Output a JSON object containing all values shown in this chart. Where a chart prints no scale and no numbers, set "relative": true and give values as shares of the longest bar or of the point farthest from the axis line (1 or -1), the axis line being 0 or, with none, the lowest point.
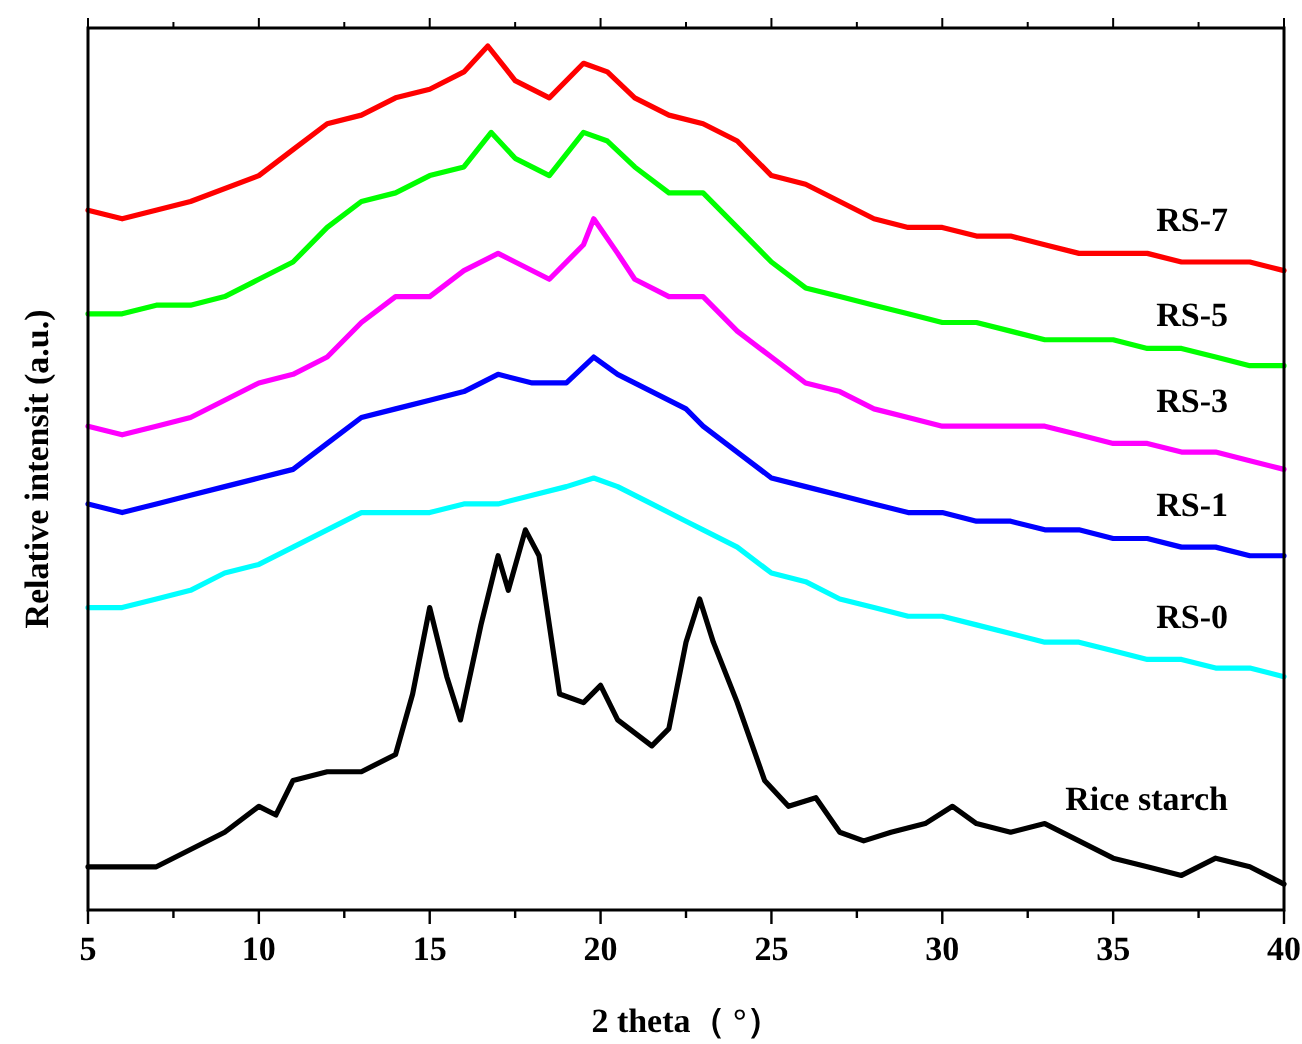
{
  "chart_data": {
    "type": "line",
    "relative": true,
    "xlabel": "2 theta（ °）",
    "ylabel": "Relative intensit (a.u.)",
    "xlim": [
      5,
      40
    ],
    "xticks": [
      5,
      {
        "value": 7.5,
        "label": null
      },
      10,
      {
        "value": 12.5,
        "label": null
      },
      15,
      {
        "value": 17.5,
        "label": null
      },
      20,
      {
        "value": 22.5,
        "label": null
      },
      25,
      {
        "value": 27.5,
        "label": null
      },
      30,
      {
        "value": 32.5,
        "label": null
      },
      35,
      {
        "value": 37.5,
        "label": null
      },
      40
    ],
    "grid": false,
    "legend": false,
    "marker": "none",
    "line_style": "solid",
    "series": [
      {
        "name": "RS-7",
        "color": "#ff0000",
        "x": [
          5,
          6,
          8,
          10,
          11,
          12,
          13,
          14,
          15,
          16,
          16.7,
          17.5,
          18.5,
          19.5,
          20.2,
          21,
          22,
          23,
          24,
          25,
          26,
          27,
          28,
          29,
          30,
          31,
          32,
          33,
          34,
          35,
          36,
          37,
          38,
          39,
          40
        ],
        "values": [
          0.81,
          0.8,
          0.82,
          0.85,
          0.88,
          0.91,
          0.92,
          0.94,
          0.95,
          0.97,
          1.0,
          0.96,
          0.94,
          0.98,
          0.97,
          0.94,
          0.92,
          0.91,
          0.89,
          0.85,
          0.84,
          0.82,
          0.8,
          0.79,
          0.79,
          0.78,
          0.78,
          0.77,
          0.76,
          0.76,
          0.76,
          0.75,
          0.75,
          0.75,
          0.74
        ]
      },
      {
        "name": "RS-5",
        "color": "#00ff00",
        "x": [
          5,
          6,
          7,
          8,
          9,
          10,
          11,
          12,
          13,
          14,
          15,
          16,
          16.8,
          17.5,
          18.5,
          19.5,
          20.2,
          21,
          22,
          23,
          24,
          25,
          26,
          27,
          28,
          29,
          30,
          31,
          32,
          33,
          34,
          35,
          36,
          37,
          38,
          39,
          40
        ],
        "values": [
          0.69,
          0.69,
          0.7,
          0.7,
          0.71,
          0.73,
          0.75,
          0.79,
          0.82,
          0.83,
          0.85,
          0.86,
          0.9,
          0.87,
          0.85,
          0.9,
          0.89,
          0.86,
          0.83,
          0.83,
          0.79,
          0.75,
          0.72,
          0.71,
          0.7,
          0.69,
          0.68,
          0.68,
          0.67,
          0.66,
          0.66,
          0.66,
          0.65,
          0.65,
          0.64,
          0.63,
          0.63
        ]
      },
      {
        "name": "RS-3",
        "color": "#ff00ff",
        "x": [
          5,
          6,
          7,
          8,
          9,
          10,
          11,
          12,
          13,
          14,
          15,
          16,
          17,
          17.5,
          18.5,
          19.5,
          19.8,
          20.5,
          21,
          22,
          23,
          24,
          25,
          26,
          27,
          28,
          29,
          30,
          31,
          32,
          33,
          34,
          35,
          36,
          37,
          38,
          39,
          40
        ],
        "values": [
          0.56,
          0.55,
          0.56,
          0.57,
          0.59,
          0.61,
          0.62,
          0.64,
          0.68,
          0.71,
          0.71,
          0.74,
          0.76,
          0.75,
          0.73,
          0.77,
          0.8,
          0.76,
          0.73,
          0.71,
          0.71,
          0.67,
          0.64,
          0.61,
          0.6,
          0.58,
          0.57,
          0.56,
          0.56,
          0.56,
          0.56,
          0.55,
          0.54,
          0.54,
          0.53,
          0.53,
          0.52,
          0.51
        ]
      },
      {
        "name": "RS-1",
        "color": "#0000ff",
        "x": [
          5,
          6,
          7,
          8,
          9,
          10,
          11,
          12,
          13,
          14,
          15,
          16,
          17,
          18,
          19,
          19.8,
          20.5,
          21.5,
          22.5,
          23,
          24,
          25,
          26,
          27,
          28,
          29,
          30,
          31,
          32,
          33,
          34,
          35,
          36,
          37,
          38,
          39,
          40
        ],
        "values": [
          0.47,
          0.46,
          0.47,
          0.48,
          0.49,
          0.5,
          0.51,
          0.54,
          0.57,
          0.58,
          0.59,
          0.6,
          0.62,
          0.61,
          0.61,
          0.64,
          0.62,
          0.6,
          0.58,
          0.56,
          0.53,
          0.5,
          0.49,
          0.48,
          0.47,
          0.46,
          0.46,
          0.45,
          0.45,
          0.44,
          0.44,
          0.43,
          0.43,
          0.42,
          0.42,
          0.41,
          0.41
        ]
      },
      {
        "name": "RS-0",
        "color": "#00ffff",
        "x": [
          5,
          6,
          7,
          8,
          9,
          10,
          11,
          12,
          13,
          14,
          15,
          16,
          17,
          18,
          19,
          19.8,
          20.5,
          21.5,
          22.5,
          23,
          24,
          25,
          26,
          27,
          28,
          29,
          30,
          31,
          32,
          33,
          34,
          35,
          36,
          37,
          38,
          39,
          40
        ],
        "values": [
          0.35,
          0.35,
          0.36,
          0.37,
          0.39,
          0.4,
          0.42,
          0.44,
          0.46,
          0.46,
          0.46,
          0.47,
          0.47,
          0.48,
          0.49,
          0.5,
          0.49,
          0.47,
          0.45,
          0.44,
          0.42,
          0.39,
          0.38,
          0.36,
          0.35,
          0.34,
          0.34,
          0.33,
          0.32,
          0.31,
          0.31,
          0.3,
          0.29,
          0.29,
          0.28,
          0.28,
          0.27
        ]
      },
      {
        "name": "Rice starch",
        "color": "#000000",
        "x": [
          5,
          6,
          7,
          8,
          9,
          10,
          10.5,
          11,
          12,
          13,
          14,
          14.5,
          15,
          15.5,
          15.9,
          16.5,
          17,
          17.3,
          17.8,
          18.2,
          18.8,
          19.5,
          20,
          20.5,
          21.5,
          22,
          22.5,
          22.9,
          23.3,
          24,
          24.8,
          25.5,
          26.3,
          27,
          27.7,
          28.5,
          29.5,
          30.3,
          31,
          32,
          33,
          34,
          35,
          36,
          37,
          38,
          39,
          40
        ],
        "values": [
          0.05,
          0.05,
          0.05,
          0.07,
          0.09,
          0.12,
          0.11,
          0.15,
          0.16,
          0.16,
          0.18,
          0.25,
          0.35,
          0.27,
          0.22,
          0.33,
          0.41,
          0.37,
          0.44,
          0.41,
          0.25,
          0.24,
          0.26,
          0.22,
          0.19,
          0.21,
          0.31,
          0.36,
          0.31,
          0.24,
          0.15,
          0.12,
          0.13,
          0.09,
          0.08,
          0.09,
          0.1,
          0.12,
          0.1,
          0.09,
          0.1,
          0.08,
          0.06,
          0.05,
          0.04,
          0.06,
          0.05,
          0.03
        ]
      }
    ]
  }
}
